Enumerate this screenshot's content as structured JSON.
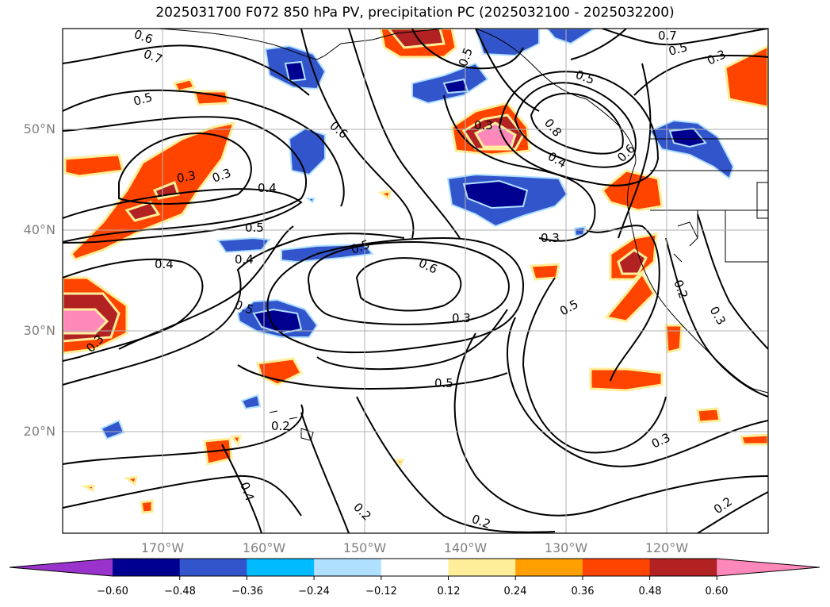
{
  "title": "2025031700 F072 850 hPa PV, precipitation PC (2025032100 - 2025032200)",
  "lat_labels": [
    "50°N",
    "40°N",
    "30°N",
    "20°N"
  ],
  "lon_labels": [
    "170°W",
    "160°W",
    "150°W",
    "140°W",
    "130°W",
    "120°W"
  ],
  "colorbar": {
    "colors": [
      "#9933cc",
      "#000090",
      "#3355cc",
      "#00bbff",
      "#b0e0ff",
      "#ffffff",
      "#ffee99",
      "#ffa000",
      "#ff4400",
      "#b22222",
      "#ff88bb"
    ],
    "tick_labels": [
      "−0.60",
      "−0.48",
      "−0.36",
      "−0.24",
      "−0.12",
      "0.12",
      "0.24",
      "0.36",
      "0.48",
      "0.60"
    ]
  },
  "contour_labels": [
    "0.7",
    "0.6",
    "0.5",
    "0.7",
    "0.5",
    "0.3",
    "0.5",
    "0.6",
    "0.3",
    "0.8",
    "0.4",
    "0.3",
    "0.3",
    "0.4",
    "0.6",
    "0.5",
    "0.5",
    "0.4",
    "0.6",
    "0.4",
    "0.3",
    "0.5",
    "0.3",
    "0.5",
    "0.3",
    "0.5",
    "0.3",
    "0.2",
    "0.4",
    "0.2",
    "0.2",
    "0.2",
    "0.3",
    "0.2",
    "0.5"
  ]
}
